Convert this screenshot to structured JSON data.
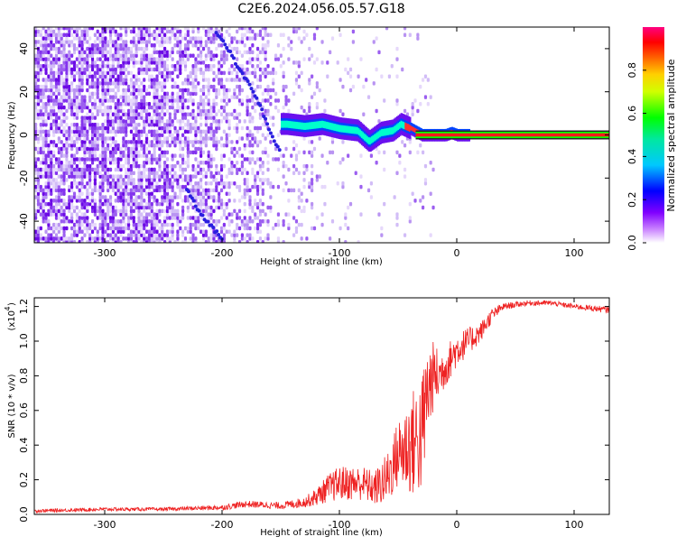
{
  "title": "C2E6.2024.056.05.57.G18",
  "colors": {
    "spectrogram_low": "#c9b6f5",
    "spectrogram_mid": "#7a1ee6",
    "snr_line": "#ee2222"
  },
  "chart_data": [
    {
      "type": "heatmap",
      "name": "spectrogram",
      "xlabel": "Height of straight line (km)",
      "ylabel": "Frequency (Hz)",
      "xlim": [
        -360,
        130
      ],
      "ylim": [
        -50,
        50
      ],
      "x_ticks": [
        -300,
        -200,
        -100,
        0,
        100
      ],
      "x_tick_labels": [
        "-300",
        "-200",
        "-100",
        "0",
        "100"
      ],
      "y_ticks": [
        -40,
        -20,
        0,
        20,
        40
      ],
      "y_tick_labels": [
        "-40",
        "-20",
        "0",
        "20",
        "40"
      ],
      "colorbar": {
        "label": "Normalized spectral amplitude",
        "range": [
          0,
          1
        ],
        "ticks": [
          0.0,
          0.2,
          0.4,
          0.6,
          0.8
        ],
        "tick_labels": [
          "0.0",
          "0.2",
          "0.4",
          "0.6",
          "0.8"
        ]
      },
      "features": {
        "carrier_track": {
          "height_km": [
            -145,
            -130,
            -115,
            -100,
            -85,
            -75,
            -65,
            -55,
            -48,
            -40,
            -30,
            -20,
            -10,
            -5,
            0,
            5,
            130
          ],
          "frequency_hz": [
            5,
            4,
            5,
            3,
            2,
            -3,
            1,
            2,
            5,
            3,
            0,
            0,
            0,
            1,
            0,
            0,
            0
          ]
        },
        "diagonal_trace": {
          "height_km": [
            -205,
            -195,
            -185,
            -175,
            -165,
            -158,
            -150
          ],
          "frequency_hz": [
            48,
            40,
            30,
            22,
            10,
            0,
            -8
          ]
        },
        "lower_trace": {
          "height_km": [
            -230,
            -220,
            -210,
            -200
          ],
          "frequency_hz": [
            -25,
            -35,
            -42,
            -48
          ]
        }
      }
    },
    {
      "type": "line",
      "name": "snr",
      "xlabel": "Height of straight line (km)",
      "ylabel": "SNR (10 * v/v)",
      "multiplier_label": "(x10",
      "multiplier_exponent": "4",
      "multiplier_close": ")",
      "xlim": [
        -360,
        130
      ],
      "ylim": [
        0,
        1.25
      ],
      "x_ticks": [
        -300,
        -200,
        -100,
        0,
        100
      ],
      "x_tick_labels": [
        "-300",
        "-200",
        "-100",
        "0",
        "100"
      ],
      "y_ticks": [
        0.0,
        0.2,
        0.4,
        0.6,
        0.8,
        1.0,
        1.2
      ],
      "y_tick_labels": [
        "0.0",
        "0.2",
        "0.4",
        "0.6",
        "0.8",
        "1.0",
        "1.2"
      ],
      "envelope": {
        "x": [
          -360,
          -300,
          -250,
          -200,
          -180,
          -150,
          -130,
          -120,
          -110,
          -100,
          -90,
          -80,
          -70,
          -60,
          -50,
          -40,
          -30,
          -25,
          -20,
          -15,
          -10,
          0,
          10,
          20,
          30,
          40,
          60,
          80,
          100,
          130
        ],
        "y_center": [
          0.02,
          0.03,
          0.03,
          0.04,
          0.06,
          0.05,
          0.07,
          0.1,
          0.15,
          0.18,
          0.18,
          0.18,
          0.15,
          0.2,
          0.35,
          0.4,
          0.45,
          0.7,
          0.8,
          0.8,
          0.85,
          0.95,
          1.0,
          1.05,
          1.15,
          1.2,
          1.22,
          1.22,
          1.2,
          1.18
        ],
        "y_spread": [
          0.01,
          0.01,
          0.01,
          0.015,
          0.02,
          0.02,
          0.03,
          0.05,
          0.08,
          0.1,
          0.1,
          0.1,
          0.1,
          0.15,
          0.2,
          0.3,
          0.35,
          0.3,
          0.2,
          0.15,
          0.12,
          0.1,
          0.08,
          0.06,
          0.04,
          0.02,
          0.015,
          0.015,
          0.015,
          0.02
        ]
      }
    }
  ]
}
